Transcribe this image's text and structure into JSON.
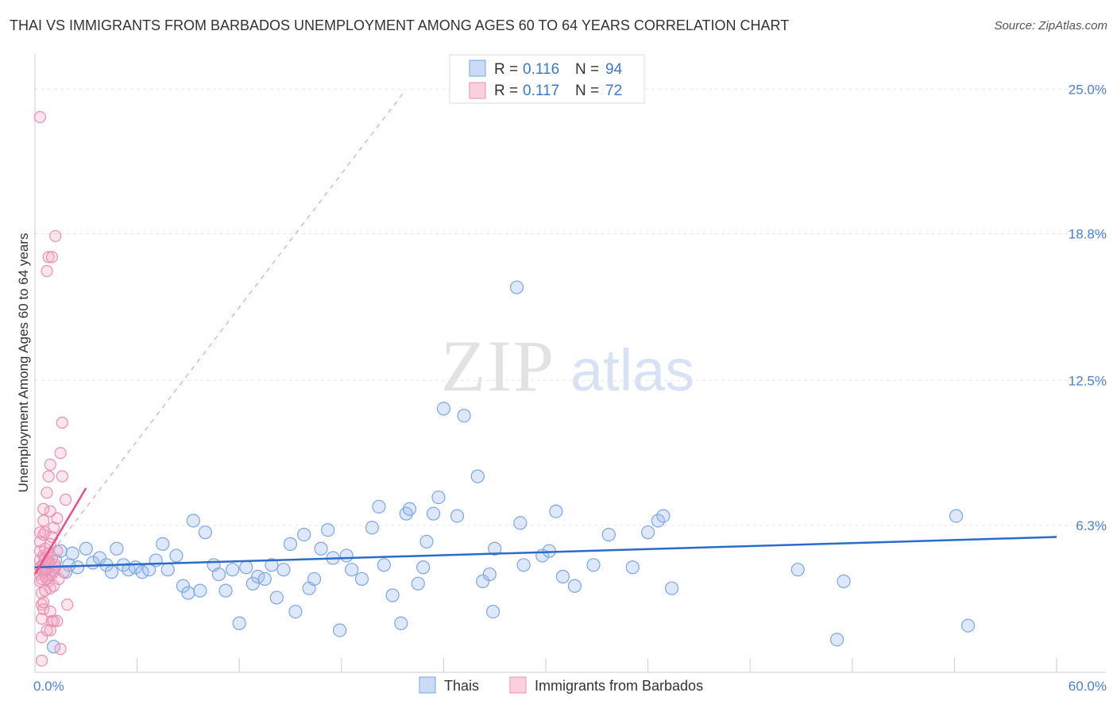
{
  "chart_data": {
    "type": "scatter",
    "title": "THAI VS IMMIGRANTS FROM BARBADOS UNEMPLOYMENT AMONG AGES 60 TO 64 YEARS CORRELATION CHART",
    "source": "Source: ZipAtlas.com",
    "ylabel": "Unemployment Among Ages 60 to 64 years",
    "xlabel": "",
    "xlim": [
      0,
      60
    ],
    "ylim": [
      0,
      26.2
    ],
    "y_ticks": [
      6.3,
      12.5,
      18.8,
      25.0
    ],
    "y_tick_labels": [
      "6.3%",
      "12.5%",
      "18.8%",
      "25.0%"
    ],
    "x_tick_labels": [
      "0.0%",
      "60.0%"
    ],
    "watermark": "ZIPatlas",
    "legend_top": [
      {
        "r_label": "R =",
        "r_value": "0.116",
        "n_label": "N =",
        "n_value": "94"
      },
      {
        "r_label": "R =",
        "r_value": "0.117",
        "n_label": "N =",
        "n_value": "72"
      }
    ],
    "series": [
      {
        "name": "Thais",
        "color": "#7aa6e6",
        "fill": "rgba(160,190,240,0.35)",
        "trend": {
          "x": [
            0,
            60
          ],
          "y": [
            4.5,
            5.8
          ],
          "color": "#2b6cc9"
        },
        "points": [
          [
            0.5,
            4.6
          ],
          [
            0.8,
            4.2
          ],
          [
            1.0,
            4.4
          ],
          [
            1.2,
            4.8
          ],
          [
            1.5,
            5.2
          ],
          [
            1.8,
            4.3
          ],
          [
            2.2,
            5.1
          ],
          [
            2.5,
            4.5
          ],
          [
            3.0,
            5.3
          ],
          [
            3.4,
            4.7
          ],
          [
            3.8,
            4.9
          ],
          [
            4.2,
            4.6
          ],
          [
            4.5,
            4.3
          ],
          [
            4.8,
            5.3
          ],
          [
            5.2,
            4.6
          ],
          [
            5.5,
            4.4
          ],
          [
            5.9,
            4.5
          ],
          [
            6.3,
            4.3
          ],
          [
            6.7,
            4.4
          ],
          [
            7.1,
            4.8
          ],
          [
            7.5,
            5.5
          ],
          [
            7.8,
            4.4
          ],
          [
            8.3,
            5.0
          ],
          [
            8.7,
            3.7
          ],
          [
            9.0,
            3.4
          ],
          [
            9.3,
            6.5
          ],
          [
            9.7,
            3.5
          ],
          [
            10.0,
            6.0
          ],
          [
            10.5,
            4.6
          ],
          [
            10.8,
            4.2
          ],
          [
            11.2,
            3.5
          ],
          [
            11.6,
            4.4
          ],
          [
            12.0,
            2.1
          ],
          [
            12.4,
            4.5
          ],
          [
            12.8,
            3.8
          ],
          [
            13.1,
            4.1
          ],
          [
            13.5,
            4.0
          ],
          [
            13.9,
            4.6
          ],
          [
            14.2,
            3.2
          ],
          [
            14.6,
            4.4
          ],
          [
            15.0,
            5.5
          ],
          [
            15.3,
            2.6
          ],
          [
            15.8,
            5.9
          ],
          [
            16.1,
            3.6
          ],
          [
            16.4,
            4.0
          ],
          [
            16.8,
            5.3
          ],
          [
            17.2,
            6.1
          ],
          [
            17.5,
            4.9
          ],
          [
            17.9,
            1.8
          ],
          [
            18.3,
            5.0
          ],
          [
            18.6,
            4.4
          ],
          [
            19.2,
            4.0
          ],
          [
            19.8,
            6.2
          ],
          [
            20.2,
            7.1
          ],
          [
            20.5,
            4.6
          ],
          [
            21.0,
            3.3
          ],
          [
            21.5,
            2.1
          ],
          [
            21.8,
            6.8
          ],
          [
            22.0,
            7.0
          ],
          [
            22.5,
            3.8
          ],
          [
            22.8,
            4.5
          ],
          [
            23.0,
            5.6
          ],
          [
            23.4,
            6.8
          ],
          [
            23.7,
            7.5
          ],
          [
            24.0,
            11.3
          ],
          [
            24.8,
            6.7
          ],
          [
            25.2,
            11.0
          ],
          [
            26.0,
            8.4
          ],
          [
            26.3,
            3.9
          ],
          [
            26.7,
            4.2
          ],
          [
            26.9,
            2.6
          ],
          [
            27.0,
            5.3
          ],
          [
            28.3,
            16.5
          ],
          [
            28.5,
            6.4
          ],
          [
            28.7,
            4.6
          ],
          [
            29.8,
            5.0
          ],
          [
            30.2,
            5.2
          ],
          [
            30.6,
            6.9
          ],
          [
            31.0,
            4.1
          ],
          [
            31.7,
            3.7
          ],
          [
            32.8,
            4.6
          ],
          [
            33.7,
            5.9
          ],
          [
            35.1,
            4.5
          ],
          [
            36.0,
            6.0
          ],
          [
            36.6,
            6.5
          ],
          [
            36.9,
            6.7
          ],
          [
            37.4,
            3.6
          ],
          [
            44.8,
            4.4
          ],
          [
            47.1,
            1.4
          ],
          [
            47.5,
            3.9
          ],
          [
            54.1,
            6.7
          ],
          [
            54.8,
            2.0
          ],
          [
            1.1,
            1.1
          ],
          [
            2.0,
            4.6
          ]
        ]
      },
      {
        "name": "Immigrants from Barbados",
        "color": "#e890b0",
        "fill": "rgba(245,170,195,0.30)",
        "trend": {
          "x": [
            0,
            3.0
          ],
          "y": [
            4.2,
            7.9
          ],
          "color": "#e8508a"
        },
        "trend_dashed": {
          "x": [
            0,
            21.7
          ],
          "y": [
            4.2,
            24.9
          ],
          "color": "#e8a0b8"
        },
        "points": [
          [
            0.3,
            23.8
          ],
          [
            0.3,
            4.5
          ],
          [
            0.3,
            4.8
          ],
          [
            0.3,
            5.2
          ],
          [
            0.3,
            4.2
          ],
          [
            0.3,
            3.9
          ],
          [
            0.3,
            5.6
          ],
          [
            0.4,
            4.4
          ],
          [
            0.4,
            2.3
          ],
          [
            0.4,
            0.5
          ],
          [
            0.4,
            2.9
          ],
          [
            0.4,
            3.4
          ],
          [
            0.5,
            5.0
          ],
          [
            0.5,
            4.6
          ],
          [
            0.5,
            4.3
          ],
          [
            0.5,
            5.9
          ],
          [
            0.5,
            6.5
          ],
          [
            0.5,
            2.7
          ],
          [
            0.6,
            4.1
          ],
          [
            0.6,
            4.9
          ],
          [
            0.6,
            5.3
          ],
          [
            0.6,
            4.5
          ],
          [
            0.6,
            6.0
          ],
          [
            0.7,
            4.7
          ],
          [
            0.7,
            7.7
          ],
          [
            0.7,
            17.2
          ],
          [
            0.7,
            4.4
          ],
          [
            0.8,
            17.8
          ],
          [
            0.8,
            8.4
          ],
          [
            0.8,
            3.9
          ],
          [
            0.8,
            4.8
          ],
          [
            0.8,
            5.1
          ],
          [
            0.9,
            4.6
          ],
          [
            0.9,
            3.6
          ],
          [
            0.9,
            6.9
          ],
          [
            0.9,
            1.8
          ],
          [
            0.9,
            8.9
          ],
          [
            1.0,
            4.2
          ],
          [
            1.0,
            17.8
          ],
          [
            1.0,
            4.9
          ],
          [
            1.0,
            2.2
          ],
          [
            1.1,
            4.3
          ],
          [
            1.1,
            6.2
          ],
          [
            1.1,
            3.7
          ],
          [
            1.1,
            2.2
          ],
          [
            1.2,
            18.7
          ],
          [
            1.2,
            4.5
          ],
          [
            1.3,
            6.6
          ],
          [
            1.3,
            5.2
          ],
          [
            1.3,
            2.2
          ],
          [
            1.4,
            4.0
          ],
          [
            1.5,
            9.4
          ],
          [
            1.5,
            1.0
          ],
          [
            1.6,
            8.4
          ],
          [
            1.6,
            10.7
          ],
          [
            1.7,
            4.3
          ],
          [
            1.8,
            7.4
          ],
          [
            1.9,
            2.9
          ],
          [
            0.4,
            1.5
          ],
          [
            0.5,
            3.0
          ],
          [
            0.6,
            3.5
          ],
          [
            0.7,
            4.0
          ],
          [
            0.9,
            5.5
          ],
          [
            1.0,
            5.8
          ],
          [
            0.3,
            6.0
          ],
          [
            0.4,
            4.0
          ],
          [
            0.6,
            4.4
          ],
          [
            0.8,
            4.7
          ],
          [
            1.2,
            4.6
          ],
          [
            0.5,
            7.0
          ],
          [
            0.7,
            1.8
          ],
          [
            0.9,
            2.6
          ]
        ]
      }
    ],
    "legend_bottom": [
      "Thais",
      "Immigrants from Barbados"
    ]
  }
}
